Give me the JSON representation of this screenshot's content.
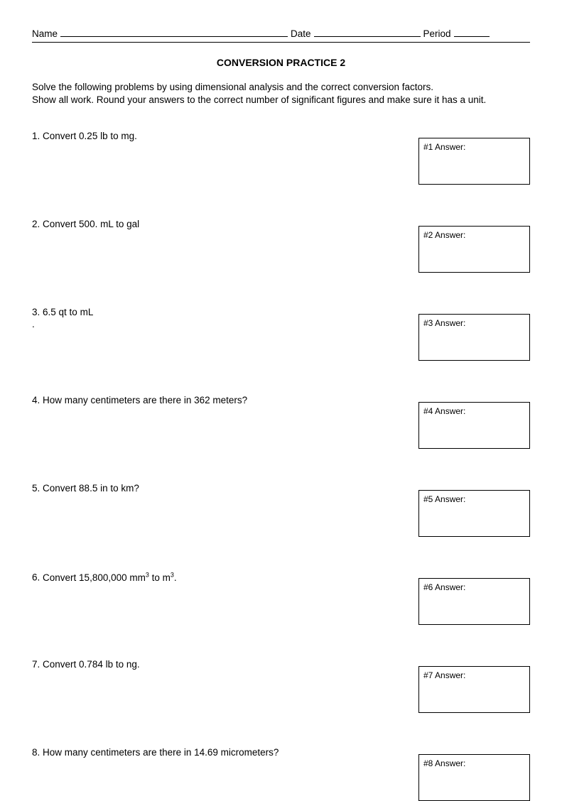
{
  "header": {
    "name_label": "Name",
    "date_label": "Date",
    "period_label": "Period"
  },
  "title": "CONVERSION PRACTICE 2",
  "instructions_line1": "Solve the following problems by using dimensional analysis and the correct conversion factors.",
  "instructions_line2": "Show all work.  Round your answers to the correct number of significant figures and make sure it has a unit.",
  "problems": [
    {
      "number": "1.",
      "text": "Convert 0.25 lb to mg.",
      "answer_label": "#1 Answer:",
      "extra": ""
    },
    {
      "number": "2.",
      "text": "Convert 500. mL to gal",
      "answer_label": "#2 Answer:",
      "extra": ""
    },
    {
      "number": "3.",
      "text": "6.5 qt to mL",
      "answer_label": "#3 Answer:",
      "extra": "."
    },
    {
      "number": "4.",
      "text": "How many centimeters are there in 362 meters?",
      "answer_label": "#4 Answer:",
      "extra": ""
    },
    {
      "number": "5.",
      "text": "Convert 88.5 in to km?",
      "answer_label": "#5 Answer:",
      "extra": ""
    },
    {
      "number": "6.",
      "text_html": "Convert 15,800,000 mm<sup>3</sup> to m<sup>3</sup>.",
      "answer_label": "#6 Answer:",
      "extra": ""
    },
    {
      "number": "7.",
      "text": "Convert 0.784 lb to ng.",
      "answer_label": "#7 Answer:",
      "extra": ""
    },
    {
      "number": "8.",
      "text": "How many centimeters are there in 14.69 micrometers?",
      "answer_label": "#8 Answer:",
      "extra": ""
    }
  ]
}
